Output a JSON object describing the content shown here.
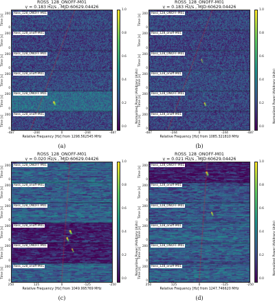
{
  "figures": [
    {
      "title": "ROSS_128_ONOFF-M01",
      "subtitle": "ṿ = 0.183 Hz/s , MJD:60629.04426",
      "xlabel": "Relative Frequency [Hz] from 1298.562545 MHz",
      "xticks": [
        "-487",
        "-244",
        "0",
        "-244",
        "-487"
      ],
      "caption": "(a)",
      "drift": 0.183,
      "hits": [
        {
          "seg": 4,
          "pos": 0.42,
          "t": 0.55,
          "strength": 1.0
        }
      ],
      "bands": [
        0.22,
        0.2,
        0.21,
        0.23,
        0.35,
        0.22
      ]
    },
    {
      "title": "ROSS_128_ONOFF-M01",
      "subtitle": "ṿ = 0.183 Hz/s , MJD:60629.04426",
      "xlabel": "Relative Frequency [Hz] from 1085.321810 MHz",
      "xticks": [
        "-487",
        "-244",
        "0",
        "-244",
        "-487"
      ],
      "caption": "(b)",
      "drift": 0.183,
      "hits": [
        {
          "seg": 2,
          "pos": 0.52,
          "t": 0.45,
          "strength": 0.6
        },
        {
          "seg": 4,
          "pos": 0.55,
          "t": 0.6,
          "strength": 0.8
        }
      ],
      "bands": [
        0.22,
        0.2,
        0.21,
        0.23,
        0.22,
        0.21
      ]
    },
    {
      "title": "ROSS_128_ONOFF-M01",
      "subtitle": "ṿ = 0.020 Hz/s , MJD:60629.04426",
      "xlabel": "Relative Frequency [Hz] from 1049.995769 MHz",
      "xticks": [
        "250",
        "125",
        "0",
        "-125",
        "-250"
      ],
      "caption": "(c)",
      "drift": 0.02,
      "hits": [
        {
          "seg": 3,
          "pos": 0.58,
          "t": 0.4,
          "strength": 1.0
        },
        {
          "seg": 3,
          "pos": 0.55,
          "t": 0.75,
          "strength": 0.9
        },
        {
          "seg": 4,
          "pos": 0.6,
          "t": 0.3,
          "strength": 0.7
        }
      ],
      "bands": [
        0.3,
        0.3,
        0.3,
        0.08,
        0.08,
        0.3
      ]
    },
    {
      "title": "ROSS_128_ONOFF-M01",
      "subtitle": "ṿ = 0.021 Hz/s , MJD:60629.04426",
      "xlabel": "Relative Frequency [Hz] from 1247.746620 MHz",
      "xticks": [
        "250",
        "125",
        "0",
        "-125",
        "-250"
      ],
      "caption": "(d)",
      "drift": 0.021,
      "hits": [
        {
          "seg": 0,
          "pos": 0.57,
          "t": 0.5,
          "strength": 1.0
        },
        {
          "seg": 2,
          "pos": 0.62,
          "t": 0.5,
          "strength": 0.8
        }
      ],
      "bands": [
        0.08,
        0.25,
        0.28,
        0.3,
        0.3,
        0.3
      ]
    }
  ],
  "segment_labels": [
    "Ross_128_ONOFF-M01",
    "Ross_128_onoff-M01",
    "Ross_128_ONOFF-M01",
    "Ross_128_onoff-M01",
    "Ross_128_ONOFF-M01",
    "Ross_128_onoff-M01"
  ],
  "ylabel": "Time [s]",
  "yticks": [
    "200",
    "0"
  ],
  "colorbar": {
    "label": "Normalized Power (Arbitrary Units)",
    "ticks": [
      "1.0",
      "0.8",
      "0.6",
      "0.4",
      "0.2",
      "0.0"
    ],
    "colormap": [
      "#440154",
      "#3b528b",
      "#21918c",
      "#5ec962",
      "#fde725"
    ]
  },
  "drift_line_color": "#d62728"
}
